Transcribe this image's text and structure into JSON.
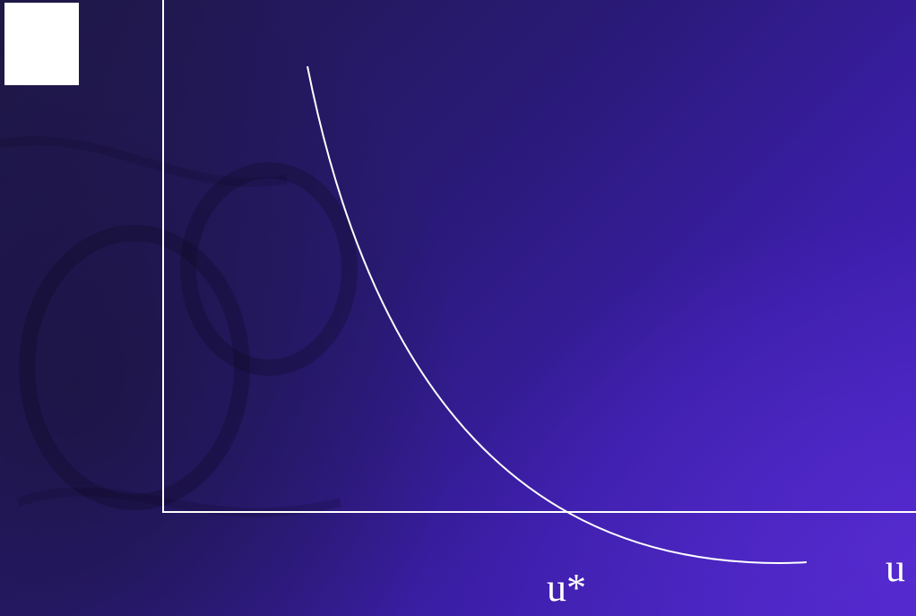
{
  "colors": {
    "background": "#2a1670",
    "line": "#ffffff",
    "corner_box": "#ffffff"
  },
  "labels": {
    "natural_rate": "u*",
    "x_axis": "u"
  }
}
